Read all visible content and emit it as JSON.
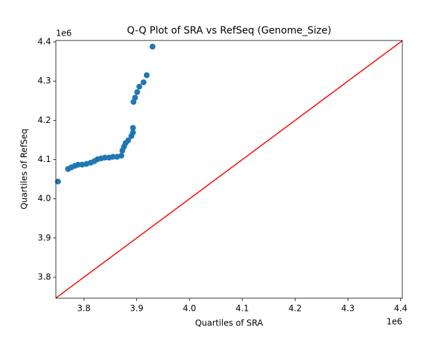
{
  "chart_data": {
    "type": "scatter",
    "title": "Q-Q Plot of SRA vs RefSeq (Genome_Size)",
    "x_label": "Quartiles of SRA",
    "y_label": "Quartiles of RefSeq",
    "x_offset_label": "1e6",
    "y_offset_label": "1e6",
    "xlim": [
      3747000,
      4403000
    ],
    "ylim": [
      3746600,
      4403600
    ],
    "xticks": [
      {
        "value": 3800000,
        "label": "3.8"
      },
      {
        "value": 3900000,
        "label": "3.9"
      },
      {
        "value": 4000000,
        "label": "4.0"
      },
      {
        "value": 4100000,
        "label": "4.1"
      },
      {
        "value": 4200000,
        "label": "4.2"
      },
      {
        "value": 4300000,
        "label": "4.3"
      },
      {
        "value": 4400000,
        "label": "4.4"
      }
    ],
    "yticks": [
      {
        "value": 3800000,
        "label": "3.8"
      },
      {
        "value": 3900000,
        "label": "3.9"
      },
      {
        "value": 4000000,
        "label": "4.0"
      },
      {
        "value": 4100000,
        "label": "4.1"
      },
      {
        "value": 4200000,
        "label": "4.2"
      },
      {
        "value": 4300000,
        "label": "4.3"
      },
      {
        "value": 4400000,
        "label": "4.4"
      }
    ],
    "grid": false,
    "color": "#1f77b4",
    "x": [
      3751000,
      3770000,
      3776000,
      3783000,
      3789000,
      3797000,
      3805000,
      3813000,
      3820000,
      3826000,
      3833000,
      3840000,
      3848000,
      3855000,
      3863000,
      3871000,
      3873000,
      3876000,
      3879000,
      3884000,
      3890000,
      3893000,
      3893000,
      3894000,
      3897000,
      3901000,
      3905000,
      3913000,
      3919000,
      3930000
    ],
    "values": [
      4044000,
      4076000,
      4080000,
      4084000,
      4087000,
      4087000,
      4089000,
      4092000,
      4096000,
      4101000,
      4103000,
      4105000,
      4105000,
      4107000,
      4107000,
      4110000,
      4123000,
      4133000,
      4142000,
      4149000,
      4160000,
      4169000,
      4181000,
      4247000,
      4258000,
      4272000,
      4286000,
      4297000,
      4315000,
      4388000
    ],
    "reference_line": {
      "color": "#ff0000",
      "x": [
        3747000,
        4403000
      ],
      "y": [
        3747000,
        4403000
      ]
    }
  }
}
